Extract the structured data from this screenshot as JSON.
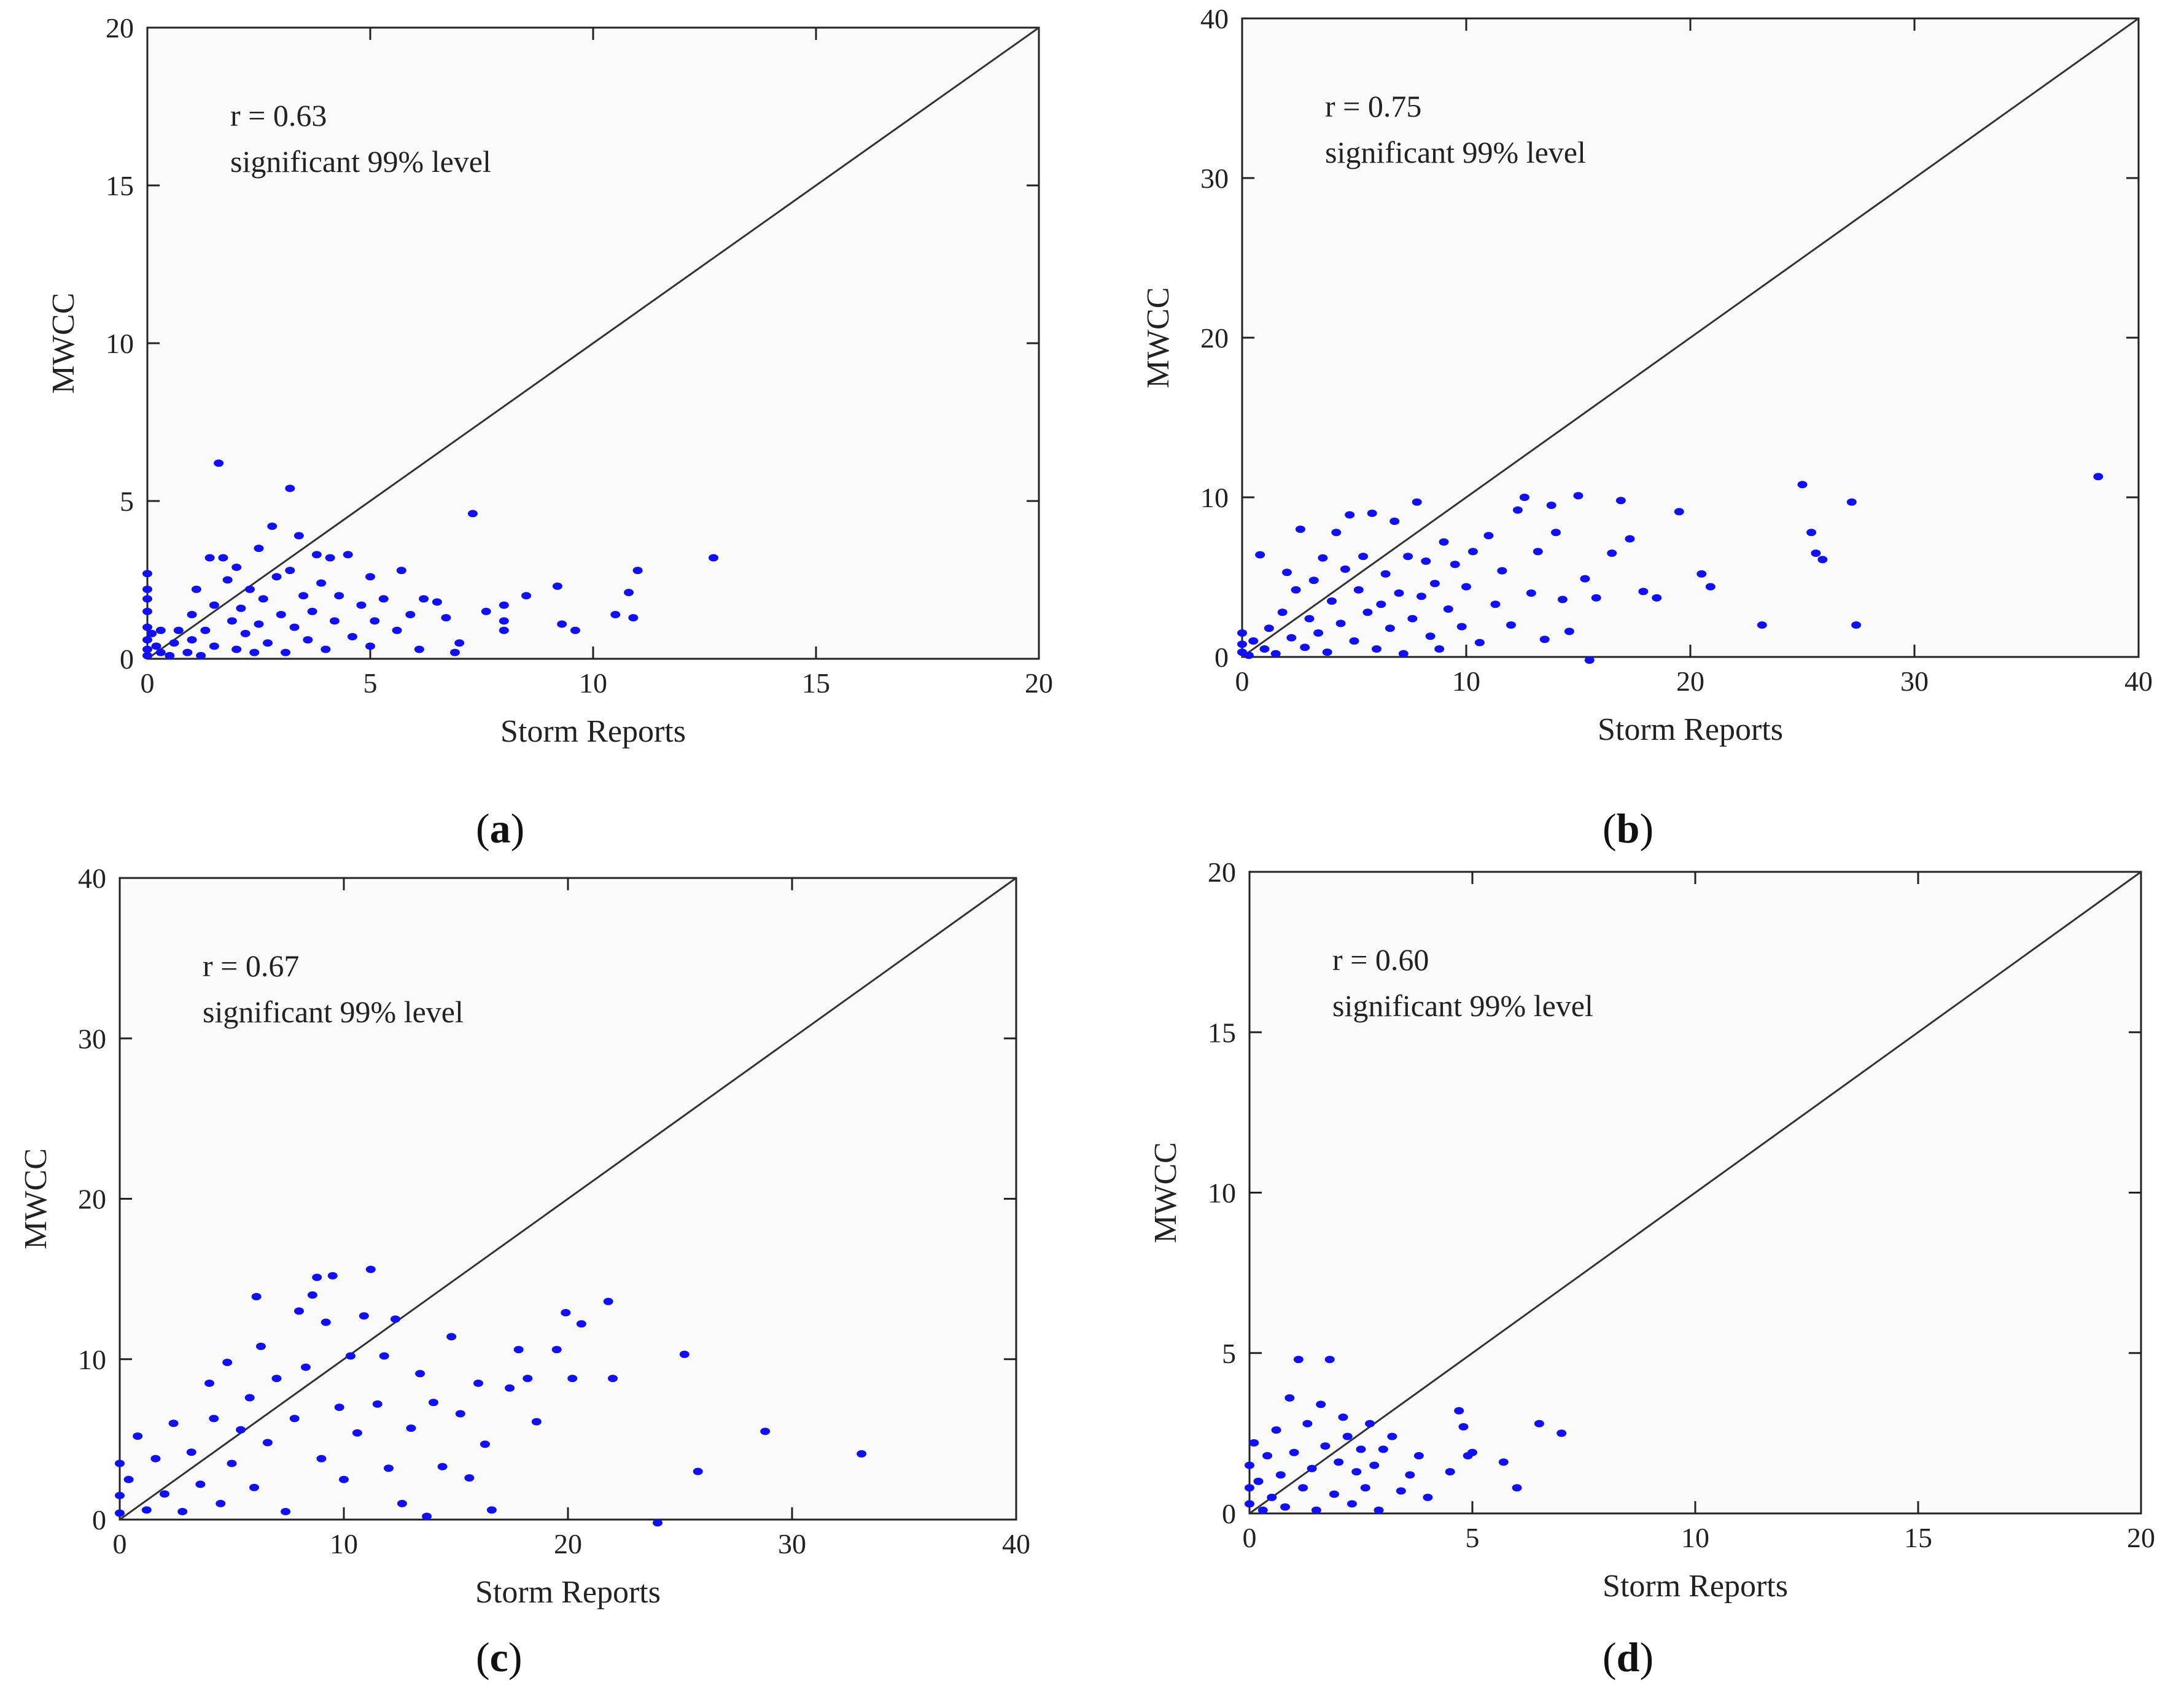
{
  "captions": {
    "a": {
      "open": "(",
      "letter": "a",
      "close": ")"
    },
    "b": {
      "open": "(",
      "letter": "b",
      "close": ")"
    },
    "c": {
      "open": "(",
      "letter": "c",
      "close": ")"
    },
    "d": {
      "open": "(",
      "letter": "d",
      "close": ")"
    }
  },
  "colors": {
    "points": "#1010f0",
    "axes": "#222222"
  },
  "chart_data": [
    {
      "id": "a",
      "type": "scatter",
      "xlabel": "Storm Reports",
      "ylabel": "MWCC",
      "xlim": [
        0,
        20
      ],
      "ylim": [
        0,
        20
      ],
      "xticks": [
        0,
        5,
        10,
        15,
        20
      ],
      "yticks": [
        0,
        5,
        10,
        15,
        20
      ],
      "annotation": {
        "r_text": "r = 0.63",
        "significance": "significant 99% level"
      },
      "reference_line": "y = x",
      "points": [
        [
          0,
          2.7
        ],
        [
          0,
          2.2
        ],
        [
          0,
          1.9
        ],
        [
          0,
          1.5
        ],
        [
          0,
          1.0
        ],
        [
          0,
          0.6
        ],
        [
          0,
          0.3
        ],
        [
          0,
          0.1
        ],
        [
          0.1,
          0.8
        ],
        [
          0.2,
          0.4
        ],
        [
          0.3,
          0.2
        ],
        [
          0.3,
          0.9
        ],
        [
          0.5,
          0.1
        ],
        [
          0.6,
          0.5
        ],
        [
          0.7,
          0.9
        ],
        [
          0.9,
          0.2
        ],
        [
          1.0,
          1.4
        ],
        [
          1.0,
          0.6
        ],
        [
          1.1,
          2.2
        ],
        [
          1.2,
          0.1
        ],
        [
          1.3,
          0.9
        ],
        [
          1.4,
          3.2
        ],
        [
          1.5,
          1.7
        ],
        [
          1.5,
          0.4
        ],
        [
          1.6,
          6.2
        ],
        [
          1.7,
          3.2
        ],
        [
          1.8,
          2.5
        ],
        [
          1.9,
          1.2
        ],
        [
          2.0,
          0.3
        ],
        [
          2.0,
          2.9
        ],
        [
          2.1,
          1.6
        ],
        [
          2.2,
          0.8
        ],
        [
          2.3,
          2.2
        ],
        [
          2.4,
          0.2
        ],
        [
          2.5,
          3.5
        ],
        [
          2.5,
          1.1
        ],
        [
          2.6,
          1.9
        ],
        [
          2.7,
          0.5
        ],
        [
          2.8,
          4.2
        ],
        [
          2.9,
          2.6
        ],
        [
          3.0,
          1.4
        ],
        [
          3.1,
          0.2
        ],
        [
          3.2,
          2.8
        ],
        [
          3.2,
          5.4
        ],
        [
          3.3,
          1.0
        ],
        [
          3.4,
          3.9
        ],
        [
          3.5,
          2.0
        ],
        [
          3.6,
          0.6
        ],
        [
          3.7,
          1.5
        ],
        [
          3.8,
          3.3
        ],
        [
          3.9,
          2.4
        ],
        [
          4.0,
          0.3
        ],
        [
          4.1,
          3.2
        ],
        [
          4.2,
          1.2
        ],
        [
          4.3,
          2.0
        ],
        [
          4.5,
          3.3
        ],
        [
          4.6,
          0.7
        ],
        [
          4.8,
          1.7
        ],
        [
          5.0,
          2.6
        ],
        [
          5.0,
          0.4
        ],
        [
          5.1,
          1.2
        ],
        [
          5.3,
          1.9
        ],
        [
          5.6,
          0.9
        ],
        [
          5.7,
          2.8
        ],
        [
          5.9,
          1.4
        ],
        [
          6.1,
          0.3
        ],
        [
          6.2,
          1.9
        ],
        [
          6.5,
          1.8
        ],
        [
          6.7,
          1.3
        ],
        [
          6.9,
          0.2
        ],
        [
          7.0,
          0.5
        ],
        [
          7.3,
          4.6
        ],
        [
          7.6,
          1.5
        ],
        [
          8.0,
          1.7
        ],
        [
          8.0,
          1.2
        ],
        [
          8.0,
          0.9
        ],
        [
          8.5,
          2.0
        ],
        [
          9.2,
          2.3
        ],
        [
          9.3,
          1.1
        ],
        [
          9.6,
          0.9
        ],
        [
          10.5,
          1.4
        ],
        [
          10.8,
          2.1
        ],
        [
          10.9,
          1.3
        ],
        [
          11.0,
          2.8
        ],
        [
          12.7,
          3.2
        ]
      ]
    },
    {
      "id": "b",
      "type": "scatter",
      "xlabel": "Storm Reports",
      "ylabel": "MWCC",
      "xlim": [
        0,
        40
      ],
      "ylim": [
        0,
        40
      ],
      "xticks": [
        0,
        10,
        20,
        30,
        40
      ],
      "yticks": [
        0,
        10,
        20,
        30,
        40
      ],
      "annotation": {
        "r_text": "r = 0.75",
        "significance": "significant 99% level"
      },
      "reference_line": "y = x",
      "points": [
        [
          0,
          1.5
        ],
        [
          0,
          0.8
        ],
        [
          0,
          0.3
        ],
        [
          0.3,
          0.1
        ],
        [
          0.5,
          1.0
        ],
        [
          0.8,
          6.4
        ],
        [
          1.0,
          0.5
        ],
        [
          1.2,
          1.8
        ],
        [
          1.5,
          0.2
        ],
        [
          1.8,
          2.8
        ],
        [
          2.0,
          5.3
        ],
        [
          2.2,
          1.2
        ],
        [
          2.4,
          4.2
        ],
        [
          2.6,
          8.0
        ],
        [
          2.8,
          0.6
        ],
        [
          3.0,
          2.4
        ],
        [
          3.2,
          4.8
        ],
        [
          3.4,
          1.5
        ],
        [
          3.6,
          6.2
        ],
        [
          3.8,
          0.3
        ],
        [
          4.0,
          3.5
        ],
        [
          4.2,
          7.8
        ],
        [
          4.4,
          2.1
        ],
        [
          4.6,
          5.5
        ],
        [
          4.8,
          8.9
        ],
        [
          5.0,
          1.0
        ],
        [
          5.2,
          4.2
        ],
        [
          5.4,
          6.3
        ],
        [
          5.6,
          2.8
        ],
        [
          5.8,
          9.0
        ],
        [
          6.0,
          0.5
        ],
        [
          6.2,
          3.3
        ],
        [
          6.4,
          5.2
        ],
        [
          6.6,
          1.8
        ],
        [
          6.8,
          8.5
        ],
        [
          7.0,
          4.0
        ],
        [
          7.2,
          0.2
        ],
        [
          7.4,
          6.3
        ],
        [
          7.6,
          2.4
        ],
        [
          7.8,
          9.7
        ],
        [
          8.0,
          3.8
        ],
        [
          8.2,
          6.0
        ],
        [
          8.4,
          1.3
        ],
        [
          8.6,
          4.6
        ],
        [
          8.8,
          0.5
        ],
        [
          9.0,
          7.2
        ],
        [
          9.2,
          3.0
        ],
        [
          9.5,
          5.8
        ],
        [
          9.8,
          1.9
        ],
        [
          10.0,
          4.4
        ],
        [
          10.3,
          6.6
        ],
        [
          10.6,
          0.9
        ],
        [
          11.0,
          7.6
        ],
        [
          11.3,
          3.3
        ],
        [
          11.6,
          5.4
        ],
        [
          12.0,
          2.0
        ],
        [
          12.3,
          9.2
        ],
        [
          12.6,
          10.0
        ],
        [
          12.9,
          4.0
        ],
        [
          13.2,
          6.6
        ],
        [
          13.5,
          1.1
        ],
        [
          13.8,
          9.5
        ],
        [
          14.0,
          7.8
        ],
        [
          14.3,
          3.6
        ],
        [
          14.6,
          1.6
        ],
        [
          15.0,
          10.1
        ],
        [
          15.3,
          4.9
        ],
        [
          15.5,
          -0.2
        ],
        [
          15.8,
          3.7
        ],
        [
          16.5,
          6.5
        ],
        [
          16.9,
          9.8
        ],
        [
          17.3,
          7.4
        ],
        [
          17.9,
          4.1
        ],
        [
          18.5,
          3.7
        ],
        [
          19.5,
          9.1
        ],
        [
          20.5,
          5.2
        ],
        [
          20.9,
          4.4
        ],
        [
          23.2,
          2.0
        ],
        [
          25.0,
          10.8
        ],
        [
          25.4,
          7.8
        ],
        [
          25.6,
          6.5
        ],
        [
          25.9,
          6.1
        ],
        [
          27.2,
          9.7
        ],
        [
          27.4,
          2.0
        ],
        [
          38.2,
          11.3
        ]
      ]
    },
    {
      "id": "c",
      "type": "scatter",
      "xlabel": "Storm Reports",
      "ylabel": "MWCC",
      "xlim": [
        0,
        40
      ],
      "ylim": [
        0,
        40
      ],
      "xticks": [
        0,
        10,
        20,
        30,
        40
      ],
      "yticks": [
        0,
        10,
        20,
        30,
        40
      ],
      "annotation": {
        "r_text": "r = 0.67",
        "significance": "significant 99% level"
      },
      "reference_line": "y = x",
      "points": [
        [
          0,
          3.5
        ],
        [
          0,
          1.5
        ],
        [
          0,
          0.4
        ],
        [
          0.4,
          2.5
        ],
        [
          0.8,
          5.2
        ],
        [
          1.2,
          0.6
        ],
        [
          1.6,
          3.8
        ],
        [
          2.0,
          1.6
        ],
        [
          2.4,
          6.0
        ],
        [
          2.8,
          0.5
        ],
        [
          3.2,
          4.2
        ],
        [
          3.6,
          2.2
        ],
        [
          4.0,
          8.5
        ],
        [
          4.2,
          6.3
        ],
        [
          4.5,
          1.0
        ],
        [
          4.8,
          9.8
        ],
        [
          5.0,
          3.5
        ],
        [
          5.4,
          5.6
        ],
        [
          5.8,
          7.6
        ],
        [
          6.0,
          2.0
        ],
        [
          6.1,
          13.9
        ],
        [
          6.3,
          10.8
        ],
        [
          6.6,
          4.8
        ],
        [
          7.0,
          8.8
        ],
        [
          7.4,
          0.5
        ],
        [
          7.8,
          6.3
        ],
        [
          8.0,
          13.0
        ],
        [
          8.3,
          9.5
        ],
        [
          8.6,
          14.0
        ],
        [
          8.8,
          15.1
        ],
        [
          9.0,
          3.8
        ],
        [
          9.2,
          12.3
        ],
        [
          9.5,
          15.2
        ],
        [
          9.8,
          7.0
        ],
        [
          10.0,
          2.5
        ],
        [
          10.3,
          10.2
        ],
        [
          10.6,
          5.4
        ],
        [
          10.9,
          12.7
        ],
        [
          11.2,
          15.6
        ],
        [
          11.5,
          7.2
        ],
        [
          11.8,
          10.2
        ],
        [
          12.0,
          3.2
        ],
        [
          12.3,
          12.5
        ],
        [
          12.6,
          1.0
        ],
        [
          13.0,
          5.7
        ],
        [
          13.4,
          9.1
        ],
        [
          13.7,
          0.2
        ],
        [
          14.0,
          7.3
        ],
        [
          14.4,
          3.3
        ],
        [
          14.8,
          11.4
        ],
        [
          15.2,
          6.6
        ],
        [
          15.6,
          2.6
        ],
        [
          16.0,
          8.5
        ],
        [
          16.3,
          4.7
        ],
        [
          16.6,
          0.6
        ],
        [
          17.4,
          8.2
        ],
        [
          17.8,
          10.6
        ],
        [
          18.2,
          8.8
        ],
        [
          18.6,
          6.1
        ],
        [
          19.5,
          10.6
        ],
        [
          19.9,
          12.9
        ],
        [
          20.2,
          8.8
        ],
        [
          20.6,
          12.2
        ],
        [
          21.8,
          13.6
        ],
        [
          22.0,
          8.8
        ],
        [
          24.0,
          -0.2
        ],
        [
          25.2,
          10.3
        ],
        [
          25.8,
          3.0
        ],
        [
          28.8,
          5.5
        ],
        [
          33.1,
          4.1
        ]
      ]
    },
    {
      "id": "d",
      "type": "scatter",
      "xlabel": "Storm Reports",
      "ylabel": "MWCC",
      "xlim": [
        0,
        20
      ],
      "ylim": [
        0,
        20
      ],
      "xticks": [
        0,
        5,
        10,
        15,
        20
      ],
      "yticks": [
        0,
        5,
        10,
        15,
        20
      ],
      "annotation": {
        "r_text": "r = 0.60",
        "significance": "significant 99% level"
      },
      "reference_line": "y = x",
      "points": [
        [
          0,
          1.5
        ],
        [
          0,
          0.8
        ],
        [
          0,
          0.3
        ],
        [
          0.1,
          2.2
        ],
        [
          0.2,
          1.0
        ],
        [
          0.3,
          0.1
        ],
        [
          0.4,
          1.8
        ],
        [
          0.5,
          0.5
        ],
        [
          0.6,
          2.6
        ],
        [
          0.7,
          1.2
        ],
        [
          0.8,
          0.2
        ],
        [
          0.9,
          3.6
        ],
        [
          1.0,
          1.9
        ],
        [
          1.1,
          4.8
        ],
        [
          1.2,
          0.8
        ],
        [
          1.3,
          2.8
        ],
        [
          1.4,
          1.4
        ],
        [
          1.5,
          0.1
        ],
        [
          1.6,
          3.4
        ],
        [
          1.7,
          2.1
        ],
        [
          1.8,
          4.8
        ],
        [
          1.9,
          0.6
        ],
        [
          2.0,
          1.6
        ],
        [
          2.1,
          3.0
        ],
        [
          2.2,
          2.4
        ],
        [
          2.3,
          0.3
        ],
        [
          2.4,
          1.3
        ],
        [
          2.5,
          2.0
        ],
        [
          2.6,
          0.8
        ],
        [
          2.7,
          2.8
        ],
        [
          2.8,
          1.5
        ],
        [
          2.9,
          0.1
        ],
        [
          3.0,
          2.0
        ],
        [
          3.2,
          2.4
        ],
        [
          3.4,
          0.7
        ],
        [
          3.6,
          1.2
        ],
        [
          3.8,
          1.8
        ],
        [
          4.0,
          0.5
        ],
        [
          4.5,
          1.3
        ],
        [
          4.7,
          3.2
        ],
        [
          4.8,
          2.7
        ],
        [
          4.9,
          1.8
        ],
        [
          5.0,
          1.9
        ],
        [
          6.5,
          2.8
        ],
        [
          7.0,
          2.5
        ],
        [
          5.7,
          1.6
        ],
        [
          6.0,
          0.8
        ]
      ]
    }
  ]
}
